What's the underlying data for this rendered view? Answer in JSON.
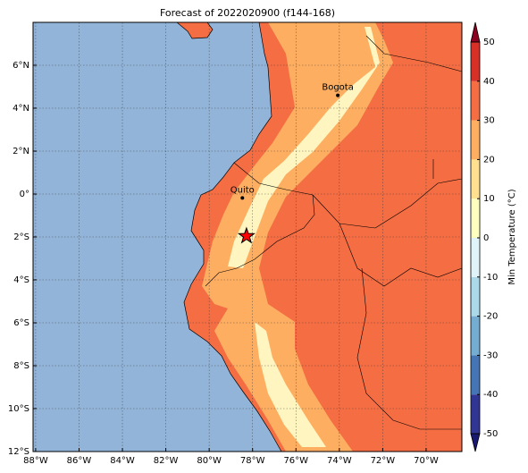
{
  "title": "Forecast of 2022020900 (f144-168)",
  "lonlim": [
    -88.12,
    -68.35
  ],
  "latlim": [
    -12,
    8
  ],
  "lon_ticks": [
    {
      "value": -88,
      "label": "88°W"
    },
    {
      "value": -86,
      "label": "86°W"
    },
    {
      "value": -84,
      "label": "84°W"
    },
    {
      "value": -82,
      "label": "82°W"
    },
    {
      "value": -80,
      "label": "80°W"
    },
    {
      "value": -78,
      "label": "78°W"
    },
    {
      "value": -76,
      "label": "76°W"
    },
    {
      "value": -74,
      "label": "74°W"
    },
    {
      "value": -72,
      "label": "72°W"
    },
    {
      "value": -70,
      "label": "70°W"
    }
  ],
  "lat_ticks": [
    {
      "value": 6,
      "label": "6°N"
    },
    {
      "value": 4,
      "label": "4°N"
    },
    {
      "value": 2,
      "label": "2°N"
    },
    {
      "value": 0,
      "label": "0°"
    },
    {
      "value": -2,
      "label": "2°S"
    },
    {
      "value": -4,
      "label": "4°S"
    },
    {
      "value": -6,
      "label": "6°S"
    },
    {
      "value": -8,
      "label": "8°S"
    },
    {
      "value": -10,
      "label": "10°S"
    },
    {
      "value": -12,
      "label": "12°S"
    }
  ],
  "cities": [
    {
      "name": "Bogota",
      "lon": -74.07,
      "lat": 4.6
    },
    {
      "name": "Quito",
      "lon": -78.47,
      "lat": -0.18
    }
  ],
  "star": {
    "lon": -78.28,
    "lat": -1.96
  },
  "colorbar": {
    "label": "Min Temperature (°C)",
    "ticks": [
      -50,
      -40,
      -30,
      -20,
      -10,
      0,
      10,
      20,
      30,
      40,
      50
    ],
    "colors": [
      "#313695",
      "#4575b4",
      "#74add1",
      "#abd9e9",
      "#e0f3f8",
      "#ffffbf",
      "#fee090",
      "#fdae61",
      "#f46d43",
      "#d73027"
    ],
    "extend_colors": [
      "#191970",
      "#8b0020"
    ]
  }
}
